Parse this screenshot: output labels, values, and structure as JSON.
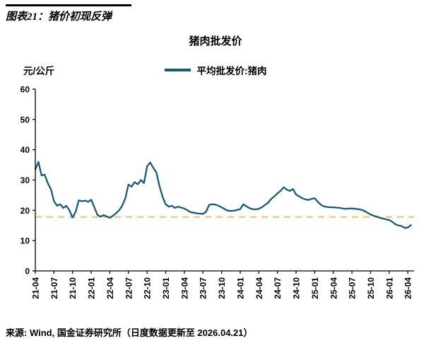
{
  "header": {
    "title": "图表21：猪价初现反弹"
  },
  "chart": {
    "title": "猪肉批发价",
    "unit_label": "元/公斤",
    "legend_label": "平均批发价:猪肉"
  },
  "source": {
    "text": "来源: Wind, 国金证券研究所（日度数据更新至 2026.04.21）"
  },
  "colors": {
    "line": "#1a5a78",
    "dashed": "#e8ce7e",
    "axis": "#000000",
    "background": "#ffffff"
  },
  "chart_data": {
    "type": "line",
    "title": "猪肉批发价",
    "xlabel": "",
    "ylabel": "元/公斤",
    "ylim": [
      0,
      60
    ],
    "yticks": [
      0,
      10,
      20,
      30,
      40,
      50,
      60
    ],
    "grid": false,
    "legend_position": "top",
    "x_tick_labels": [
      "21-04",
      "21-07",
      "21-10",
      "22-01",
      "22-04",
      "22-07",
      "22-10",
      "23-01",
      "23-04",
      "23-07",
      "23-10",
      "24-01",
      "24-04",
      "24-07",
      "24-10",
      "25-01",
      "25-04",
      "25-07",
      "25-10",
      "26-01",
      "26-04"
    ],
    "x_months_span": 61,
    "points_per_month": 2,
    "reference_line": {
      "value": 17.8,
      "color": "#e8ce7e",
      "style": "dashed"
    },
    "series": [
      {
        "name": "平均批发价:猪肉",
        "color": "#1a5a78",
        "values": [
          33.5,
          36.0,
          31.5,
          31.8,
          29.0,
          27.0,
          23.0,
          21.5,
          22.0,
          20.8,
          21.5,
          20.0,
          17.6,
          19.5,
          23.3,
          23.0,
          23.2,
          22.8,
          23.5,
          21.0,
          18.5,
          17.9,
          18.4,
          18.0,
          17.5,
          18.2,
          19.0,
          20.0,
          21.5,
          24.0,
          28.5,
          27.8,
          29.3,
          28.6,
          30.0,
          29.0,
          34.5,
          35.8,
          34.0,
          32.5,
          28.0,
          24.5,
          22.0,
          21.2,
          21.5,
          20.8,
          21.2,
          20.9,
          20.6,
          20.0,
          19.4,
          19.2,
          19.0,
          18.9,
          18.8,
          19.5,
          21.8,
          22.0,
          21.9,
          21.5,
          21.0,
          20.4,
          19.9,
          19.8,
          19.9,
          20.1,
          20.4,
          22.0,
          21.3,
          20.7,
          20.4,
          20.3,
          20.5,
          21.0,
          21.8,
          22.5,
          23.8,
          24.6,
          25.6,
          26.4,
          27.6,
          26.8,
          26.4,
          27.0,
          25.2,
          24.6,
          24.0,
          23.6,
          23.4,
          23.8,
          24.0,
          22.8,
          21.8,
          21.3,
          21.1,
          21.0,
          21.0,
          20.9,
          20.8,
          20.6,
          20.5,
          20.6,
          20.6,
          20.5,
          20.4,
          20.2,
          19.8,
          19.2,
          18.6,
          18.2,
          17.9,
          17.5,
          17.3,
          17.0,
          16.8,
          16.2,
          15.4,
          15.0,
          14.8,
          14.2,
          14.3,
          15.1
        ]
      }
    ]
  }
}
